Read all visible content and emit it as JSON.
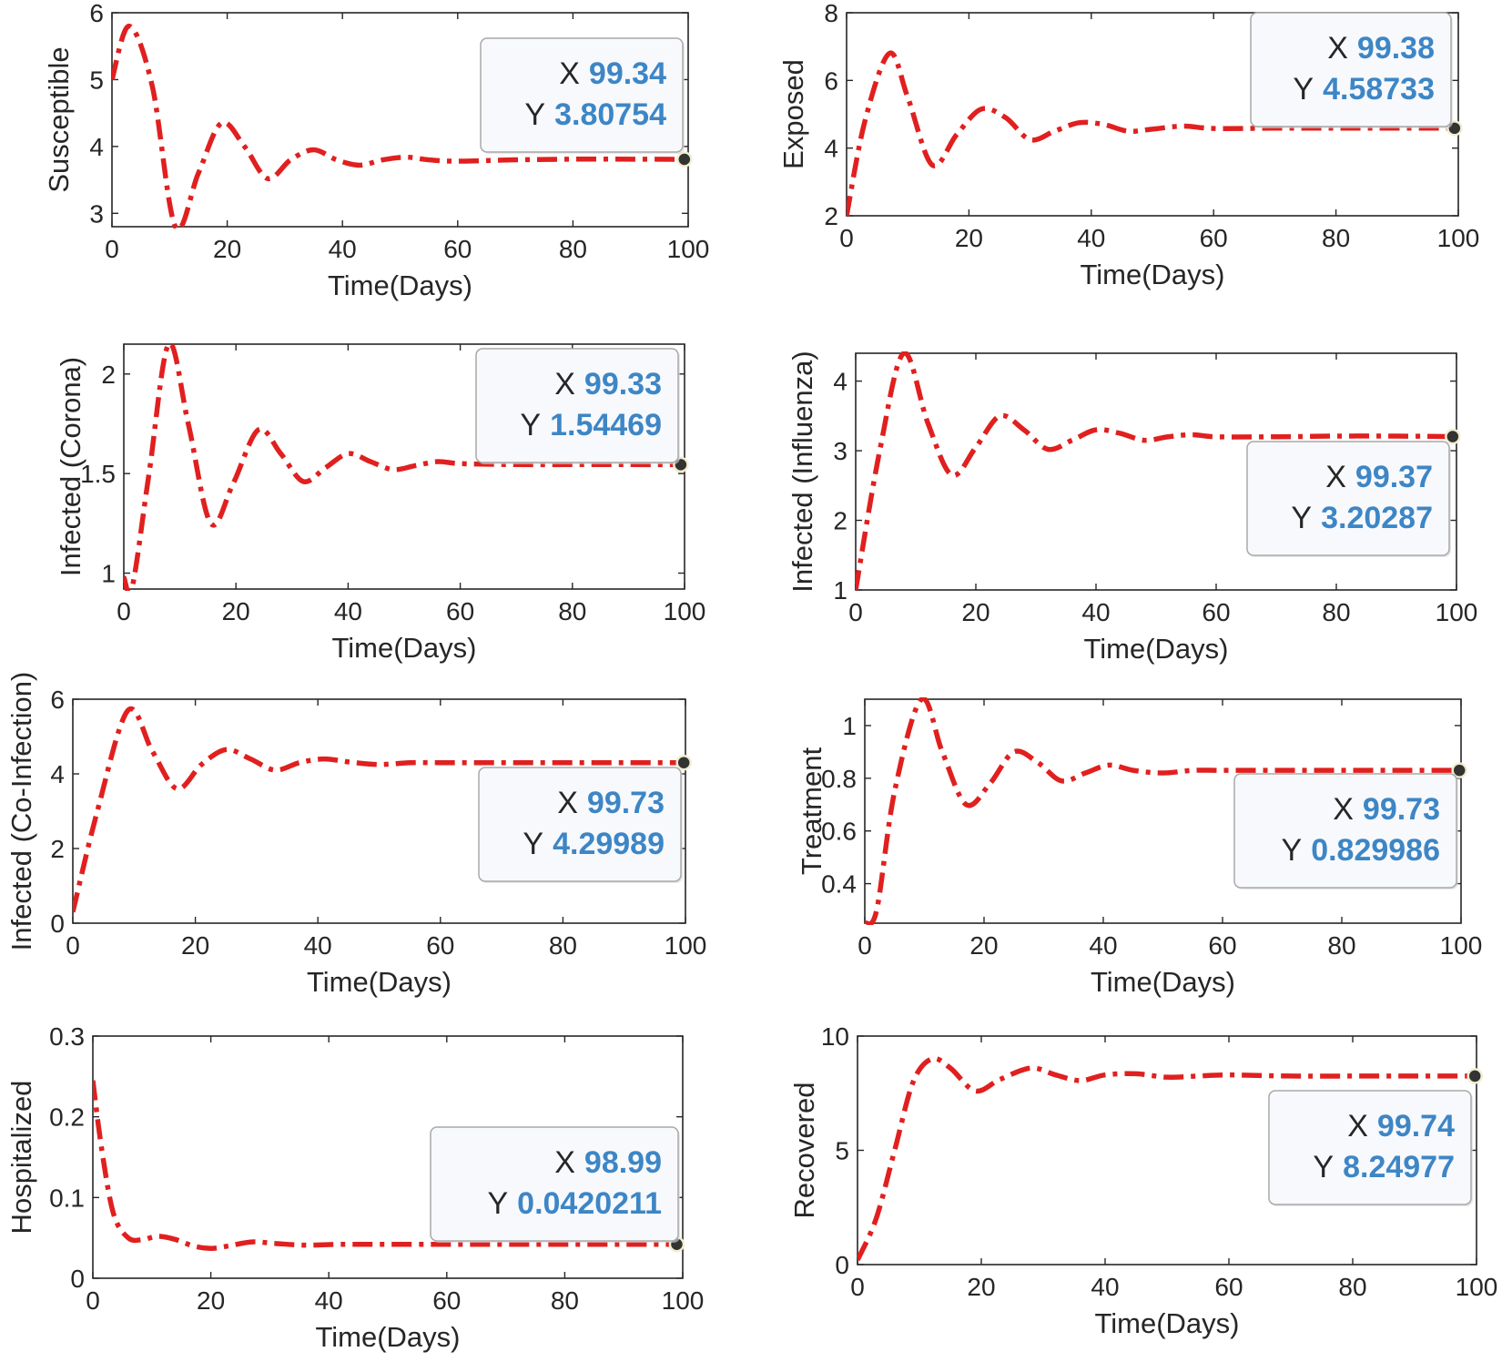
{
  "line_color": "#e0201f",
  "marker_color": "#333333",
  "datatip_value_color": "#3d86c6",
  "chart_data": [
    {
      "type": "line",
      "id": "susceptible",
      "xlabel": "Time(Days)",
      "ylabel": "Susceptible",
      "xlim": [
        0,
        100
      ],
      "ylim": [
        2.8,
        6
      ],
      "xticks": [
        0,
        20,
        40,
        60,
        80,
        100
      ],
      "yticks": [
        3,
        4,
        5,
        6
      ],
      "ytick_labels": [
        "3",
        "4",
        "5",
        "6"
      ],
      "x": [
        0,
        3,
        7,
        11,
        15,
        19,
        23,
        27,
        31,
        35,
        39,
        43,
        47,
        51,
        55,
        60,
        70,
        80,
        90,
        99.34
      ],
      "y": [
        5.0,
        5.8,
        4.9,
        2.8,
        3.6,
        4.35,
        4.0,
        3.52,
        3.8,
        3.95,
        3.8,
        3.72,
        3.8,
        3.84,
        3.8,
        3.78,
        3.8,
        3.81,
        3.81,
        3.80754
      ],
      "datatip": {
        "x_key": "X",
        "y_key": "Y",
        "x": "99.34",
        "y": "3.80754",
        "box": "upper"
      }
    },
    {
      "type": "line",
      "id": "exposed",
      "xlabel": "Time(Days)",
      "ylabel": "Exposed",
      "xlim": [
        0,
        100
      ],
      "ylim": [
        2,
        8
      ],
      "xticks": [
        0,
        20,
        40,
        60,
        80,
        100
      ],
      "yticks": [
        2,
        4,
        6,
        8
      ],
      "ytick_labels": [
        "2",
        "4",
        "6",
        "8"
      ],
      "x": [
        0,
        3,
        7,
        10,
        14,
        18,
        22,
        26,
        30,
        34,
        38,
        42,
        46,
        50,
        55,
        60,
        70,
        80,
        90,
        99.38
      ],
      "y": [
        2.0,
        4.8,
        6.8,
        5.5,
        3.5,
        4.4,
        5.15,
        4.9,
        4.25,
        4.5,
        4.75,
        4.7,
        4.5,
        4.56,
        4.65,
        4.58,
        4.59,
        4.59,
        4.59,
        4.58733
      ],
      "datatip": {
        "x_key": "X",
        "y_key": "Y",
        "x": "99.38",
        "y": "4.58733",
        "box": "upper"
      }
    },
    {
      "type": "line",
      "id": "infected-corona",
      "xlabel": "Time(Days)",
      "ylabel": "Infected (Corona)",
      "xlim": [
        0,
        100
      ],
      "ylim": [
        0.92,
        2.15
      ],
      "xticks": [
        0,
        20,
        40,
        60,
        80,
        100
      ],
      "yticks": [
        1,
        1.5,
        2
      ],
      "ytick_labels": [
        "1",
        "1.5",
        "2"
      ],
      "x": [
        0,
        1.5,
        4.5,
        8,
        11.5,
        15.5,
        19.5,
        24,
        28,
        32,
        36,
        40,
        44,
        48,
        52,
        56,
        60,
        70,
        80,
        90,
        99.33
      ],
      "y": [
        0.98,
        0.93,
        1.5,
        2.15,
        1.75,
        1.25,
        1.45,
        1.72,
        1.6,
        1.46,
        1.53,
        1.6,
        1.56,
        1.52,
        1.54,
        1.56,
        1.55,
        1.545,
        1.545,
        1.545,
        1.54469
      ],
      "datatip": {
        "x_key": "X",
        "y_key": "Y",
        "x": "99.33",
        "y": "1.54469",
        "box": "upper"
      }
    },
    {
      "type": "line",
      "id": "infected-influenza",
      "xlabel": "Time(Days)",
      "ylabel": "Infected (Influenza)",
      "xlim": [
        0,
        100
      ],
      "ylim": [
        1,
        4.4
      ],
      "xticks": [
        0,
        20,
        40,
        60,
        80,
        100
      ],
      "yticks": [
        1,
        2,
        3,
        4
      ],
      "ytick_labels": [
        "1",
        "2",
        "3",
        "4"
      ],
      "x": [
        0,
        4,
        8,
        12,
        16,
        20,
        24,
        28,
        32,
        36,
        40,
        44,
        48,
        52,
        56,
        60,
        70,
        80,
        90,
        99.37
      ],
      "y": [
        1.0,
        3.0,
        4.4,
        3.4,
        2.65,
        3.05,
        3.5,
        3.3,
        3.02,
        3.15,
        3.3,
        3.25,
        3.15,
        3.2,
        3.23,
        3.2,
        3.2,
        3.21,
        3.21,
        3.20287
      ],
      "datatip": {
        "x_key": "X",
        "y_key": "Y",
        "x": "99.37",
        "y": "3.20287",
        "box": "lower"
      }
    },
    {
      "type": "line",
      "id": "infected-co-infection",
      "xlabel": "Time(Days)",
      "ylabel": "Infected (Co-Infection)",
      "xlim": [
        0,
        100
      ],
      "ylim": [
        0,
        6
      ],
      "xticks": [
        0,
        20,
        40,
        60,
        80,
        100
      ],
      "yticks": [
        0,
        2,
        4,
        6
      ],
      "ytick_labels": [
        "0",
        "2",
        "4",
        "6"
      ],
      "x": [
        0,
        4,
        9,
        13,
        17,
        21,
        25,
        29,
        33,
        37,
        41,
        45,
        50,
        55,
        60,
        70,
        80,
        90,
        99.73
      ],
      "y": [
        0.3,
        3.0,
        5.7,
        4.6,
        3.6,
        4.25,
        4.65,
        4.4,
        4.1,
        4.3,
        4.4,
        4.32,
        4.25,
        4.3,
        4.3,
        4.3,
        4.3,
        4.3,
        4.29989
      ],
      "datatip": {
        "x_key": "X",
        "y_key": "Y",
        "x": "99.73",
        "y": "4.29989",
        "box": "lower"
      }
    },
    {
      "type": "line",
      "id": "treatment",
      "xlabel": "Time(Days)",
      "ylabel": "Treatment",
      "xlim": [
        0,
        100
      ],
      "ylim": [
        0.25,
        1.1
      ],
      "xticks": [
        0,
        20,
        40,
        60,
        80,
        100
      ],
      "yticks": [
        0.4,
        0.6,
        0.8,
        1
      ],
      "ytick_labels": [
        "0.4",
        "0.6",
        "0.8",
        "1"
      ],
      "x": [
        0,
        2,
        5,
        9.5,
        13,
        17,
        21,
        25,
        29,
        33,
        37,
        41,
        45,
        50,
        55,
        60,
        70,
        80,
        90,
        99.73
      ],
      "y": [
        0.25,
        0.3,
        0.75,
        1.1,
        0.9,
        0.7,
        0.78,
        0.9,
        0.86,
        0.79,
        0.82,
        0.85,
        0.83,
        0.82,
        0.83,
        0.83,
        0.83,
        0.83,
        0.83,
        0.829986
      ],
      "datatip": {
        "x_key": "X",
        "y_key": "Y",
        "x": "99.73",
        "y": "0.829986",
        "box": "lower"
      }
    },
    {
      "type": "line",
      "id": "hospitalized",
      "xlabel": "Time(Days)",
      "ylabel": "Hospitalized",
      "xlim": [
        0,
        100
      ],
      "ylim": [
        0,
        0.3
      ],
      "xticks": [
        0,
        20,
        40,
        60,
        80,
        100
      ],
      "yticks": [
        0,
        0.1,
        0.2,
        0.3
      ],
      "ytick_labels": [
        "0",
        "0.1",
        "0.2",
        "0.3"
      ],
      "x": [
        0,
        1.5,
        3.5,
        6,
        8.5,
        11,
        14,
        17,
        20,
        23,
        27,
        31,
        36,
        42,
        50,
        60,
        70,
        80,
        90,
        98.99
      ],
      "y": [
        0.245,
        0.16,
        0.08,
        0.05,
        0.048,
        0.052,
        0.048,
        0.04,
        0.037,
        0.04,
        0.045,
        0.043,
        0.041,
        0.042,
        0.042,
        0.042,
        0.042,
        0.042,
        0.042,
        0.0420211
      ],
      "datatip": {
        "x_key": "X",
        "y_key": "Y",
        "x": "98.99",
        "y": "0.0420211",
        "box": "lower"
      }
    },
    {
      "type": "line",
      "id": "recovered",
      "xlabel": "Time(Days)",
      "ylabel": "Recovered",
      "xlim": [
        0,
        100
      ],
      "ylim": [
        0,
        10
      ],
      "xticks": [
        0,
        20,
        40,
        60,
        80,
        100
      ],
      "yticks": [
        0,
        5,
        10
      ],
      "ytick_labels": [
        "0",
        "5",
        "10"
      ],
      "x": [
        0,
        3,
        6,
        9,
        12,
        15,
        19,
        23,
        28,
        32,
        36,
        40,
        45,
        50,
        55,
        60,
        70,
        80,
        90,
        99.74
      ],
      "y": [
        0.2,
        2.0,
        5.0,
        8.0,
        9.0,
        8.6,
        7.6,
        8.1,
        8.6,
        8.3,
        8.05,
        8.3,
        8.35,
        8.2,
        8.25,
        8.3,
        8.25,
        8.25,
        8.25,
        8.24977
      ],
      "datatip": {
        "x_key": "X",
        "y_key": "Y",
        "x": "99.74",
        "y": "8.24977",
        "box": "lower"
      }
    }
  ]
}
